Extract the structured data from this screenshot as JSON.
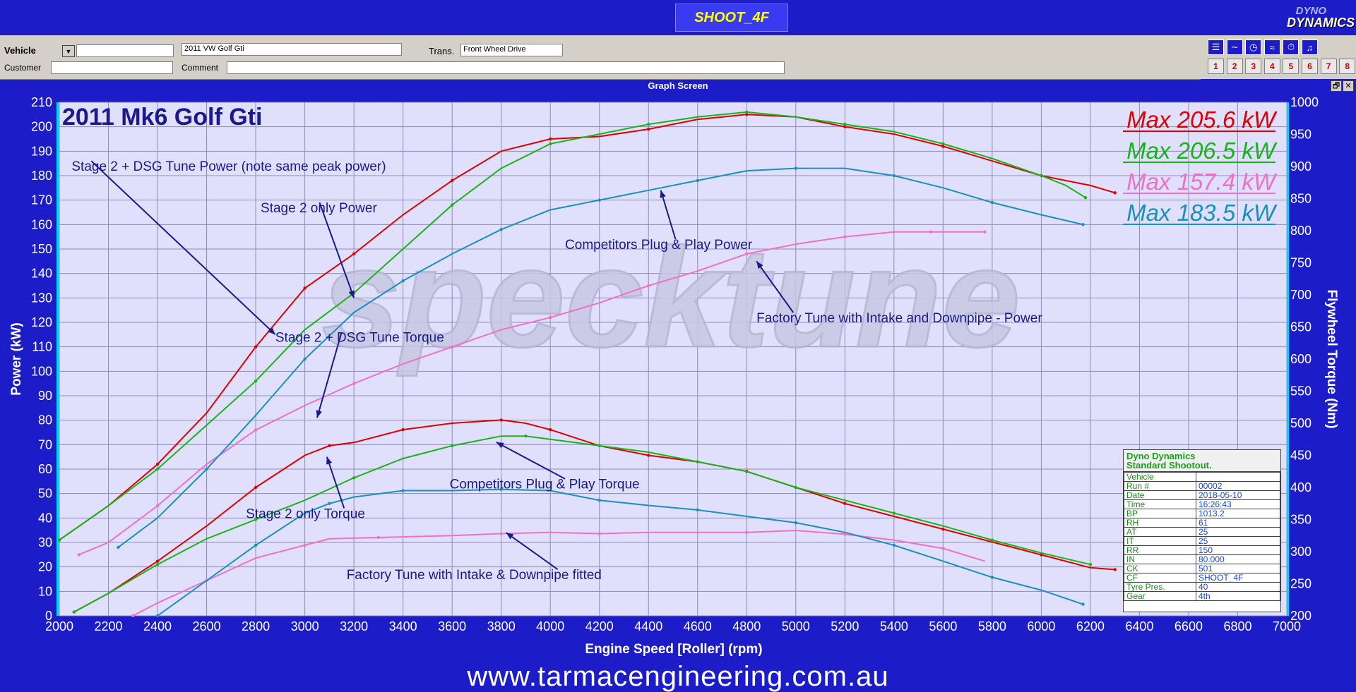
{
  "window": {
    "title": "SHOOT_4F",
    "logo_top": "DYNO",
    "logo_bottom": "DYNAMICS",
    "screen_title": "Graph Screen",
    "restore_btn": "🗗",
    "close_btn": "✕"
  },
  "vehicle_bar": {
    "vehicle_label": "Vehicle",
    "vehicle_dropdown": "▼",
    "vehicle_id_value": "",
    "vehicle_name_value": "2011 VW Golf Gti",
    "trans_label": "Trans.",
    "trans_value": "Front Wheel Drive",
    "customer_label": "Customer",
    "customer_value": "",
    "comment_label": "Comment",
    "comment_value": ""
  },
  "toolbar": {
    "tools": [
      {
        "icon": "list-icon",
        "glyph": "☰"
      },
      {
        "icon": "curve-icon",
        "glyph": "∼"
      },
      {
        "icon": "gauge-icon",
        "glyph": "◷"
      },
      {
        "icon": "graph-icon",
        "glyph": "≈"
      },
      {
        "icon": "stopwatch-icon",
        "glyph": "⏱"
      },
      {
        "icon": "bell-icon",
        "glyph": "♫"
      }
    ],
    "numbers": [
      "1",
      "2",
      "3",
      "4",
      "5",
      "6",
      "7",
      "8"
    ]
  },
  "footer_text": "www.tarmacengineering.com.au",
  "watermark": "specktune",
  "chart_data": {
    "type": "line",
    "title": "2011 Mk6 Golf Gti",
    "xlabel": "Engine Speed [Roller] (rpm)",
    "ylabel": "Power (kW)",
    "y2label": "Flywheel Torque (Nm)",
    "xlim": [
      2000,
      7000
    ],
    "ylim": [
      0,
      210
    ],
    "y2lim": [
      200,
      1000
    ],
    "x_ticks": [
      "2000",
      "2200",
      "2400",
      "2600",
      "2800",
      "3000",
      "3200",
      "3400",
      "3600",
      "3800",
      "4000",
      "4200",
      "4400",
      "4600",
      "4800",
      "5000",
      "5200",
      "5400",
      "5600",
      "5800",
      "6000",
      "6200",
      "6400",
      "6600",
      "6800",
      "7000"
    ],
    "y_ticks": [
      "0",
      "10",
      "20",
      "30",
      "40",
      "50",
      "60",
      "70",
      "80",
      "90",
      "100",
      "110",
      "120",
      "130",
      "140",
      "150",
      "160",
      "170",
      "180",
      "190",
      "200",
      "210"
    ],
    "y2_ticks": [
      "200",
      "250",
      "300",
      "350",
      "400",
      "450",
      "500",
      "550",
      "600",
      "650",
      "700",
      "750",
      "800",
      "850",
      "900",
      "950",
      "1000"
    ],
    "grid": true,
    "colors": {
      "red": "#e00000",
      "green": "#18b418",
      "pink": "#f070c8",
      "teal": "#1890c0"
    },
    "max_labels": [
      {
        "text": "Max 205.6 kW",
        "color": "#e00000"
      },
      {
        "text": "Max 206.5 kW",
        "color": "#18b418"
      },
      {
        "text": "Max 157.4 kW",
        "color": "#f070c8"
      },
      {
        "text": "Max 183.5 kW",
        "color": "#1890c0"
      }
    ],
    "series": [
      {
        "color": "#e00000",
        "kind": "power",
        "x": [
          2000,
          2200,
          2400,
          2600,
          2800,
          2900,
          3000,
          3100,
          3200,
          3400,
          3600,
          3800,
          4000,
          4200,
          4400,
          4600,
          4800,
          5000,
          5200,
          5400,
          5600,
          5800,
          6000,
          6200,
          6300
        ],
        "y": [
          31,
          45,
          62,
          83,
          110,
          122,
          134,
          141,
          148,
          164,
          178,
          190,
          195,
          196,
          199,
          203,
          205,
          204,
          200,
          197,
          192,
          186,
          180,
          176,
          173
        ]
      },
      {
        "color": "#18b418",
        "kind": "power",
        "x": [
          2000,
          2200,
          2400,
          2600,
          2800,
          3000,
          3200,
          3400,
          3600,
          3800,
          4000,
          4200,
          4400,
          4600,
          4800,
          5000,
          5200,
          5400,
          5600,
          5800,
          6000,
          6100,
          6180
        ],
        "y": [
          31,
          45,
          60,
          78,
          96,
          117,
          132,
          150,
          168,
          183,
          193,
          197,
          201,
          204,
          206,
          204,
          201,
          198,
          193,
          187,
          180,
          176,
          171
        ]
      },
      {
        "color": "#f070c8",
        "kind": "power",
        "x": [
          2080,
          2200,
          2400,
          2600,
          2800,
          3000,
          3200,
          3400,
          3600,
          3800,
          4000,
          4200,
          4400,
          4600,
          4800,
          5000,
          5200,
          5400,
          5550,
          5700,
          5770
        ],
        "y": [
          25,
          30,
          45,
          62,
          76,
          86,
          95,
          103,
          110,
          117,
          122,
          128,
          135,
          141,
          148,
          152,
          155,
          157,
          157,
          157,
          157
        ]
      },
      {
        "color": "#1890c0",
        "kind": "power",
        "x": [
          2240,
          2400,
          2600,
          2800,
          3000,
          3200,
          3400,
          3600,
          3800,
          4000,
          4200,
          4400,
          4600,
          4800,
          5000,
          5200,
          5400,
          5600,
          5800,
          6000,
          6170
        ],
        "y": [
          28,
          40,
          60,
          82,
          105,
          124,
          137,
          148,
          158,
          166,
          170,
          174,
          178,
          182,
          183,
          183,
          180,
          175,
          169,
          164,
          160
        ]
      },
      {
        "color": "#e00000",
        "kind": "torque",
        "x": [
          2060,
          2200,
          2400,
          2600,
          2800,
          3000,
          3100,
          3200,
          3400,
          3600,
          3800,
          3900,
          4000,
          4200,
          4400,
          4600,
          4800,
          5000,
          5200,
          5400,
          5600,
          5800,
          6000,
          6200,
          6300
        ],
        "y": [
          206,
          235,
          285,
          340,
          400,
          450,
          465,
          470,
          490,
          500,
          505,
          500,
          490,
          465,
          450,
          440,
          425,
          400,
          375,
          355,
          335,
          315,
          295,
          275,
          272
        ]
      },
      {
        "color": "#18b418",
        "kind": "torque",
        "x": [
          2060,
          2200,
          2400,
          2600,
          2800,
          3000,
          3200,
          3400,
          3600,
          3800,
          3900,
          4000,
          4200,
          4400,
          4600,
          4800,
          5000,
          5200,
          5400,
          5600,
          5800,
          6000,
          6200
        ],
        "y": [
          206,
          235,
          280,
          320,
          350,
          380,
          415,
          445,
          465,
          480,
          480,
          475,
          465,
          455,
          440,
          425,
          400,
          380,
          360,
          340,
          318,
          298,
          280
        ]
      },
      {
        "color": "#f070c8",
        "kind": "torque",
        "x": [
          2300,
          2400,
          2600,
          2800,
          3000,
          3100,
          3300,
          3600,
          3800,
          4000,
          4200,
          4400,
          4800,
          5000,
          5200,
          5400,
          5600,
          5770
        ],
        "y": [
          200,
          220,
          255,
          290,
          310,
          320,
          322,
          325,
          328,
          330,
          328,
          330,
          330,
          333,
          327,
          318,
          305,
          285
        ]
      },
      {
        "color": "#1890c0",
        "kind": "torque",
        "x": [
          2400,
          2600,
          2800,
          3000,
          3100,
          3200,
          3400,
          3600,
          3800,
          4000,
          4200,
          4400,
          4600,
          4800,
          5000,
          5200,
          5400,
          5600,
          5800,
          6000,
          6170
        ],
        "y": [
          200,
          255,
          310,
          360,
          375,
          385,
          395,
          395,
          397,
          395,
          380,
          372,
          365,
          355,
          345,
          330,
          310,
          285,
          260,
          240,
          218
        ]
      }
    ],
    "annotations": [
      {
        "text": "Stage 2 + DSG Tune Power (note same peak power)",
        "ax": 2050,
        "ay": 182,
        "hx": 2130,
        "hy": 186,
        "tx": 2880,
        "ty": 115
      },
      {
        "text": "Stage 2 only Power",
        "ax": 2820,
        "ay": 165,
        "hx": 3060,
        "hy": 169,
        "tx": 3200,
        "ty": 130
      },
      {
        "text": "Stage 2 + DSG Tune Torque",
        "ax": 2880,
        "ay": 112,
        "hx": 3150,
        "hy": 116,
        "tx": 3050,
        "ty": 81
      },
      {
        "text": "Stage 2 only Torque",
        "ax": 2760,
        "ay": 40,
        "hx": 3160,
        "hy": 44,
        "tx": 3090,
        "ty": 65
      },
      {
        "text": "Competitors Plug & Play Power",
        "ax": 4060,
        "ay": 150,
        "hx": 4510,
        "hy": 154,
        "tx": 4450,
        "ty": 174
      },
      {
        "text": "Factory Tune with Intake and Downpipe - Power",
        "ax": 4840,
        "ay": 120,
        "hx": 4990,
        "hy": 124,
        "tx": 4840,
        "ty": 145
      },
      {
        "text": "Competitors Plug & Play Torque",
        "ax": 3590,
        "ay": 52,
        "hx": 4060,
        "hy": 56,
        "tx": 3780,
        "ty": 71
      },
      {
        "text": "Factory Tune with Intake & Downpipe fitted",
        "ax": 3170,
        "ay": 15,
        "hx": 4030,
        "hy": 19,
        "tx": 3820,
        "ty": 34
      }
    ]
  },
  "shootout": {
    "title1": "Dyno Dynamics",
    "title2": "Standard Shootout.",
    "rows": [
      {
        "label": "Vehicle",
        "value": ""
      },
      {
        "label": "Run #",
        "value": "00002"
      },
      {
        "label": "Date",
        "value": "2018-05-10"
      },
      {
        "label": "Time",
        "value": "16:26:43"
      },
      {
        "label": "BP",
        "value": "1013.2"
      },
      {
        "label": "RH",
        "value": "61"
      },
      {
        "label": "AT",
        "value": "25"
      },
      {
        "label": "IT",
        "value": "25"
      },
      {
        "label": "RR",
        "value": "150"
      },
      {
        "label": "IN",
        "value": "80.000"
      },
      {
        "label": "CK",
        "value": "501"
      },
      {
        "label": "CF",
        "value": "SHOOT_4F"
      },
      {
        "label": "Tyre Pres.",
        "value": "40"
      },
      {
        "label": "Gear",
        "value": "4th"
      }
    ]
  }
}
